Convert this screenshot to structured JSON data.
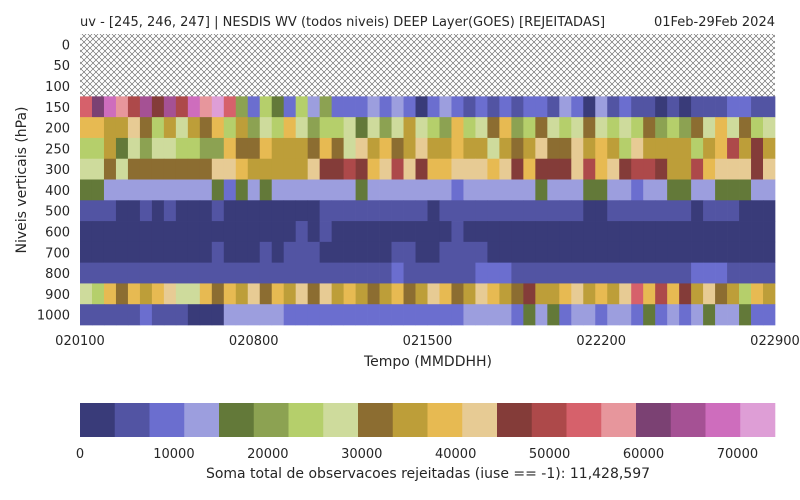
{
  "chart_data": {
    "type": "heatmap",
    "title": "uv - [245, 246, 247] | NESDIS WV (todos niveis) DEEP Layer(GOES) [REJEITADAS]",
    "date_range": "01Feb-29Feb 2024",
    "xlabel": "Tempo (MMDDHH)",
    "ylabel": "Niveis verticais (hPa)",
    "x_ticks": [
      "020100",
      "020800",
      "021500",
      "022200",
      "022900"
    ],
    "x_tick_fractions": [
      0.0,
      0.25,
      0.5,
      0.75,
      1.0
    ],
    "y_levels": [
      "0",
      "50",
      "100",
      "150",
      "200",
      "250",
      "300",
      "400",
      "500",
      "600",
      "700",
      "800",
      "900",
      "1000"
    ],
    "no_data_levels": [
      "0",
      "50",
      "100"
    ],
    "num_time_steps": 58,
    "colorbar": {
      "label": "Soma total de observacoes rejeitadas (iuse == -1): 11,428,597",
      "vmin": 0,
      "vmax": 74000,
      "ticks": [
        0,
        10000,
        20000,
        30000,
        40000,
        50000,
        60000,
        70000
      ],
      "colors": [
        "#393b79",
        "#5254a3",
        "#6b6ecf",
        "#9c9ede",
        "#637939",
        "#8ca252",
        "#b5cf6b",
        "#cedb9c",
        "#8c6d31",
        "#bd9e39",
        "#e7ba52",
        "#e7cb94",
        "#843c39",
        "#ad494a",
        "#d6616b",
        "#e7969c",
        "#7b4173",
        "#a55194",
        "#ce6dbd",
        "#de9ed6"
      ]
    },
    "grid_indices": {
      "150": [
        14,
        16,
        18,
        15,
        13,
        17,
        12,
        17,
        13,
        18,
        15,
        19,
        14,
        5,
        2,
        6,
        4,
        2,
        6,
        3,
        5,
        2,
        2,
        2,
        3,
        2,
        3,
        2,
        0,
        2,
        3,
        2,
        1,
        2,
        1,
        2,
        1,
        2,
        2,
        1,
        3,
        2,
        0,
        3,
        1,
        2,
        1,
        1,
        0,
        1,
        0,
        1,
        1,
        1,
        2,
        2,
        1,
        1
      ],
      "200": [
        10,
        10,
        9,
        9,
        11,
        8,
        6,
        9,
        7,
        9,
        8,
        10,
        6,
        9,
        5,
        7,
        6,
        10,
        7,
        5,
        6,
        6,
        7,
        4,
        7,
        5,
        7,
        9,
        7,
        6,
        5,
        10,
        6,
        7,
        8,
        10,
        5,
        6,
        8,
        7,
        6,
        7,
        8,
        7,
        6,
        7,
        6,
        8,
        5,
        6,
        5,
        8,
        7,
        10,
        7,
        8,
        6,
        7
      ],
      "250": [
        6,
        6,
        9,
        4,
        7,
        5,
        7,
        7,
        6,
        6,
        5,
        5,
        10,
        8,
        8,
        10,
        9,
        9,
        9,
        8,
        10,
        8,
        7,
        11,
        9,
        10,
        8,
        9,
        11,
        9,
        9,
        10,
        9,
        9,
        7,
        9,
        8,
        9,
        11,
        8,
        8,
        11,
        9,
        10,
        9,
        6,
        11,
        9,
        9,
        9,
        9,
        6,
        9,
        10,
        13,
        9,
        12,
        9
      ],
      "300": [
        7,
        7,
        8,
        7,
        8,
        8,
        8,
        8,
        8,
        8,
        8,
        11,
        11,
        10,
        9,
        9,
        9,
        9,
        9,
        11,
        12,
        12,
        13,
        12,
        10,
        11,
        13,
        11,
        12,
        10,
        10,
        11,
        11,
        11,
        10,
        11,
        12,
        10,
        12,
        12,
        12,
        11,
        13,
        10,
        11,
        12,
        13,
        13,
        12,
        9,
        9,
        13,
        10,
        11,
        11,
        11,
        12,
        11
      ],
      "400": [
        4,
        4,
        3,
        3,
        3,
        3,
        3,
        3,
        3,
        3,
        3,
        4,
        2,
        4,
        3,
        4,
        3,
        3,
        3,
        3,
        3,
        3,
        3,
        4,
        3,
        3,
        3,
        3,
        3,
        3,
        3,
        2,
        3,
        3,
        3,
        3,
        3,
        3,
        4,
        3,
        3,
        3,
        4,
        4,
        3,
        3,
        2,
        3,
        3,
        4,
        4,
        3,
        3,
        4,
        4,
        4,
        3,
        3
      ],
      "500": [
        1,
        1,
        1,
        0,
        0,
        1,
        0,
        1,
        0,
        0,
        0,
        1,
        0,
        0,
        0,
        0,
        0,
        0,
        0,
        0,
        1,
        1,
        1,
        1,
        1,
        1,
        1,
        1,
        1,
        0,
        1,
        1,
        1,
        1,
        1,
        1,
        1,
        1,
        1,
        1,
        1,
        1,
        0,
        0,
        1,
        1,
        1,
        1,
        1,
        1,
        1,
        0,
        1,
        1,
        1,
        0,
        0,
        0
      ],
      "600": [
        0,
        0,
        0,
        0,
        0,
        0,
        0,
        0,
        0,
        0,
        0,
        0,
        0,
        0,
        0,
        0,
        0,
        0,
        1,
        0,
        1,
        0,
        0,
        0,
        0,
        0,
        0,
        0,
        0,
        0,
        0,
        1,
        0,
        0,
        0,
        0,
        0,
        0,
        0,
        0,
        0,
        0,
        0,
        0,
        0,
        0,
        0,
        0,
        0,
        0,
        0,
        0,
        0,
        0,
        0,
        0,
        0,
        0
      ],
      "700": [
        0,
        0,
        0,
        0,
        0,
        0,
        0,
        0,
        0,
        0,
        0,
        1,
        0,
        0,
        0,
        1,
        0,
        1,
        1,
        1,
        0,
        0,
        0,
        0,
        0,
        0,
        1,
        1,
        0,
        0,
        1,
        1,
        1,
        1,
        0,
        0,
        0,
        0,
        0,
        0,
        0,
        0,
        0,
        0,
        0,
        0,
        0,
        0,
        0,
        0,
        0,
        0,
        0,
        0,
        0,
        0,
        0,
        0
      ],
      "800": [
        1,
        1,
        1,
        1,
        1,
        1,
        1,
        1,
        1,
        1,
        1,
        1,
        1,
        1,
        1,
        1,
        1,
        1,
        1,
        1,
        1,
        1,
        1,
        1,
        1,
        1,
        2,
        1,
        1,
        1,
        1,
        1,
        1,
        2,
        2,
        2,
        1,
        1,
        1,
        1,
        1,
        1,
        1,
        1,
        1,
        1,
        1,
        1,
        1,
        1,
        1,
        2,
        2,
        2,
        1,
        1,
        1,
        1
      ],
      "900": [
        7,
        6,
        10,
        8,
        10,
        9,
        10,
        11,
        7,
        7,
        10,
        8,
        10,
        9,
        11,
        8,
        10,
        9,
        11,
        8,
        11,
        9,
        10,
        9,
        8,
        9,
        10,
        8,
        9,
        11,
        10,
        8,
        9,
        11,
        10,
        9,
        8,
        12,
        9,
        9,
        10,
        11,
        9,
        10,
        9,
        11,
        14,
        10,
        13,
        10,
        12,
        9,
        11,
        8,
        9,
        6,
        10,
        9
      ],
      "1000": [
        1,
        1,
        1,
        1,
        1,
        2,
        1,
        1,
        1,
        0,
        0,
        0,
        3,
        3,
        3,
        3,
        3,
        2,
        2,
        2,
        2,
        2,
        2,
        2,
        2,
        2,
        2,
        2,
        2,
        2,
        2,
        2,
        3,
        3,
        3,
        3,
        2,
        4,
        3,
        4,
        2,
        3,
        3,
        2,
        3,
        3,
        2,
        4,
        2,
        3,
        2,
        3,
        4,
        3,
        3,
        4,
        2,
        2
      ]
    }
  }
}
